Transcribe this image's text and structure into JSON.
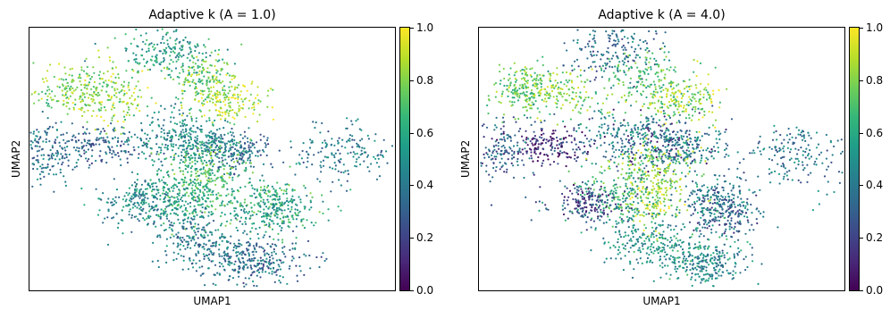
{
  "chart_data": [
    {
      "type": "scatter",
      "title": "Adaptive k (A = 1.0)",
      "xlabel": "UMAP1",
      "ylabel": "UMAP2",
      "colorbar": {
        "min": 0.0,
        "max": 1.0,
        "ticks": [
          "0.0",
          "0.2",
          "0.4",
          "0.6",
          "0.8",
          "1.0"
        ],
        "colormap": "viridis"
      },
      "grid": false,
      "clusters": [
        {
          "x": 0.37,
          "y": 0.91,
          "value": 0.55
        },
        {
          "x": 0.47,
          "y": 0.8,
          "value": 0.75
        },
        {
          "x": 0.55,
          "y": 0.72,
          "value": 0.9
        },
        {
          "x": 0.22,
          "y": 0.75,
          "value": 0.85
        },
        {
          "x": 0.12,
          "y": 0.76,
          "value": 0.8
        },
        {
          "x": 0.48,
          "y": 0.55,
          "value": 0.45
        },
        {
          "x": 0.57,
          "y": 0.53,
          "value": 0.35
        },
        {
          "x": 0.86,
          "y": 0.52,
          "value": 0.4
        },
        {
          "x": 0.05,
          "y": 0.53,
          "value": 0.4
        },
        {
          "x": 0.2,
          "y": 0.55,
          "value": 0.35
        },
        {
          "x": 0.47,
          "y": 0.47,
          "value": 0.7
        },
        {
          "x": 0.48,
          "y": 0.35,
          "value": 0.65
        },
        {
          "x": 0.38,
          "y": 0.35,
          "value": 0.55
        },
        {
          "x": 0.3,
          "y": 0.33,
          "value": 0.45
        },
        {
          "x": 0.64,
          "y": 0.33,
          "value": 0.65
        },
        {
          "x": 0.68,
          "y": 0.3,
          "value": 0.55
        },
        {
          "x": 0.44,
          "y": 0.2,
          "value": 0.4
        },
        {
          "x": 0.56,
          "y": 0.14,
          "value": 0.4
        },
        {
          "x": 0.64,
          "y": 0.1,
          "value": 0.35
        },
        {
          "x": 0.4,
          "y": 0.6,
          "value": 0.5
        }
      ]
    },
    {
      "type": "scatter",
      "title": "Adaptive k (A = 4.0)",
      "xlabel": "UMAP1",
      "ylabel": "UMAP2",
      "colorbar": {
        "min": 0.0,
        "max": 1.0,
        "ticks": [
          "0.0",
          "0.2",
          "0.4",
          "0.6",
          "0.8",
          "1.0"
        ],
        "colormap": "viridis"
      },
      "grid": false,
      "clusters": [
        {
          "x": 0.37,
          "y": 0.91,
          "value": 0.35
        },
        {
          "x": 0.47,
          "y": 0.8,
          "value": 0.7
        },
        {
          "x": 0.55,
          "y": 0.72,
          "value": 0.85
        },
        {
          "x": 0.22,
          "y": 0.75,
          "value": 0.8
        },
        {
          "x": 0.12,
          "y": 0.76,
          "value": 0.75
        },
        {
          "x": 0.48,
          "y": 0.55,
          "value": 0.2
        },
        {
          "x": 0.57,
          "y": 0.53,
          "value": 0.45
        },
        {
          "x": 0.86,
          "y": 0.52,
          "value": 0.4
        },
        {
          "x": 0.05,
          "y": 0.53,
          "value": 0.3
        },
        {
          "x": 0.2,
          "y": 0.55,
          "value": 0.15
        },
        {
          "x": 0.47,
          "y": 0.47,
          "value": 0.8
        },
        {
          "x": 0.48,
          "y": 0.35,
          "value": 0.85
        },
        {
          "x": 0.38,
          "y": 0.35,
          "value": 0.6
        },
        {
          "x": 0.3,
          "y": 0.33,
          "value": 0.2
        },
        {
          "x": 0.64,
          "y": 0.33,
          "value": 0.45
        },
        {
          "x": 0.68,
          "y": 0.3,
          "value": 0.3
        },
        {
          "x": 0.44,
          "y": 0.2,
          "value": 0.5
        },
        {
          "x": 0.56,
          "y": 0.14,
          "value": 0.55
        },
        {
          "x": 0.64,
          "y": 0.1,
          "value": 0.45
        },
        {
          "x": 0.4,
          "y": 0.6,
          "value": 0.45
        }
      ]
    }
  ]
}
